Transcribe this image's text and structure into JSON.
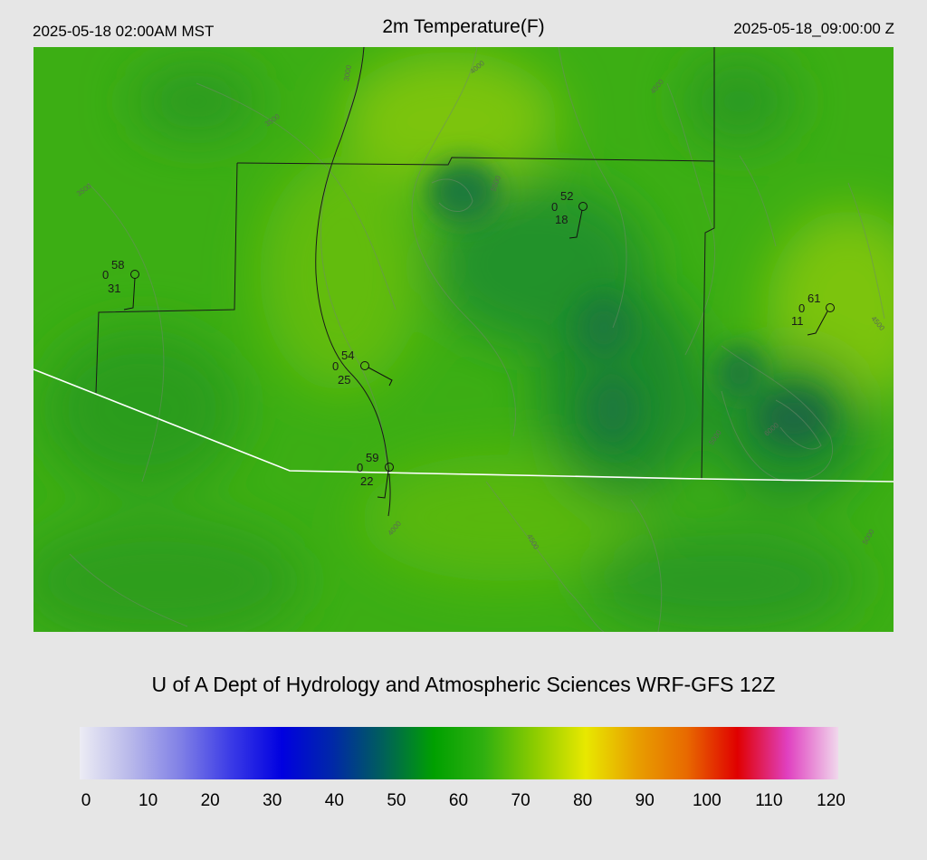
{
  "header": {
    "local_time": "2025-05-18 02:00AM MST",
    "title": "2m Temperature(F)",
    "valid_time": "2025-05-18_09:00:00 Z"
  },
  "footer": {
    "credit": "U of A Dept of Hydrology and Atmospheric Sciences WRF-GFS 12Z"
  },
  "colorbar": {
    "min": 0,
    "max": 120,
    "ticks": [
      "0",
      "10",
      "20",
      "30",
      "40",
      "50",
      "60",
      "70",
      "80",
      "90",
      "100",
      "110",
      "120"
    ],
    "colors": [
      "#ececf4",
      "#b8b8ea",
      "#8080e6",
      "#3a3ae6",
      "#0000e0",
      "#0028a8",
      "#00605a",
      "#00a000",
      "#30b010",
      "#8ccc00",
      "#e8e800",
      "#e8a000",
      "#e86a00",
      "#e00000",
      "#e040c0",
      "#f0d8ec"
    ]
  },
  "stations": [
    {
      "name": "station-west",
      "temp": "58",
      "vis": "0",
      "dew": "31"
    },
    {
      "name": "station-central",
      "temp": "54",
      "vis": "0",
      "dew": "25"
    },
    {
      "name": "station-south",
      "temp": "59",
      "vis": "0",
      "dew": "22"
    },
    {
      "name": "station-northeast",
      "temp": "52",
      "vis": "0",
      "dew": "18"
    },
    {
      "name": "station-east",
      "temp": "61",
      "vis": "0",
      "dew": "11"
    }
  ],
  "contour_labels": [
    "3000",
    "3500",
    "4000",
    "4500",
    "5000",
    "5500",
    "6000"
  ],
  "map_colors": {
    "base": "#3cae14",
    "warm": "#78c40c",
    "cool": "#1f8a22",
    "coldest": "#1a6a3a",
    "border": "#1a1a1a",
    "state_line": "#ffffff"
  }
}
